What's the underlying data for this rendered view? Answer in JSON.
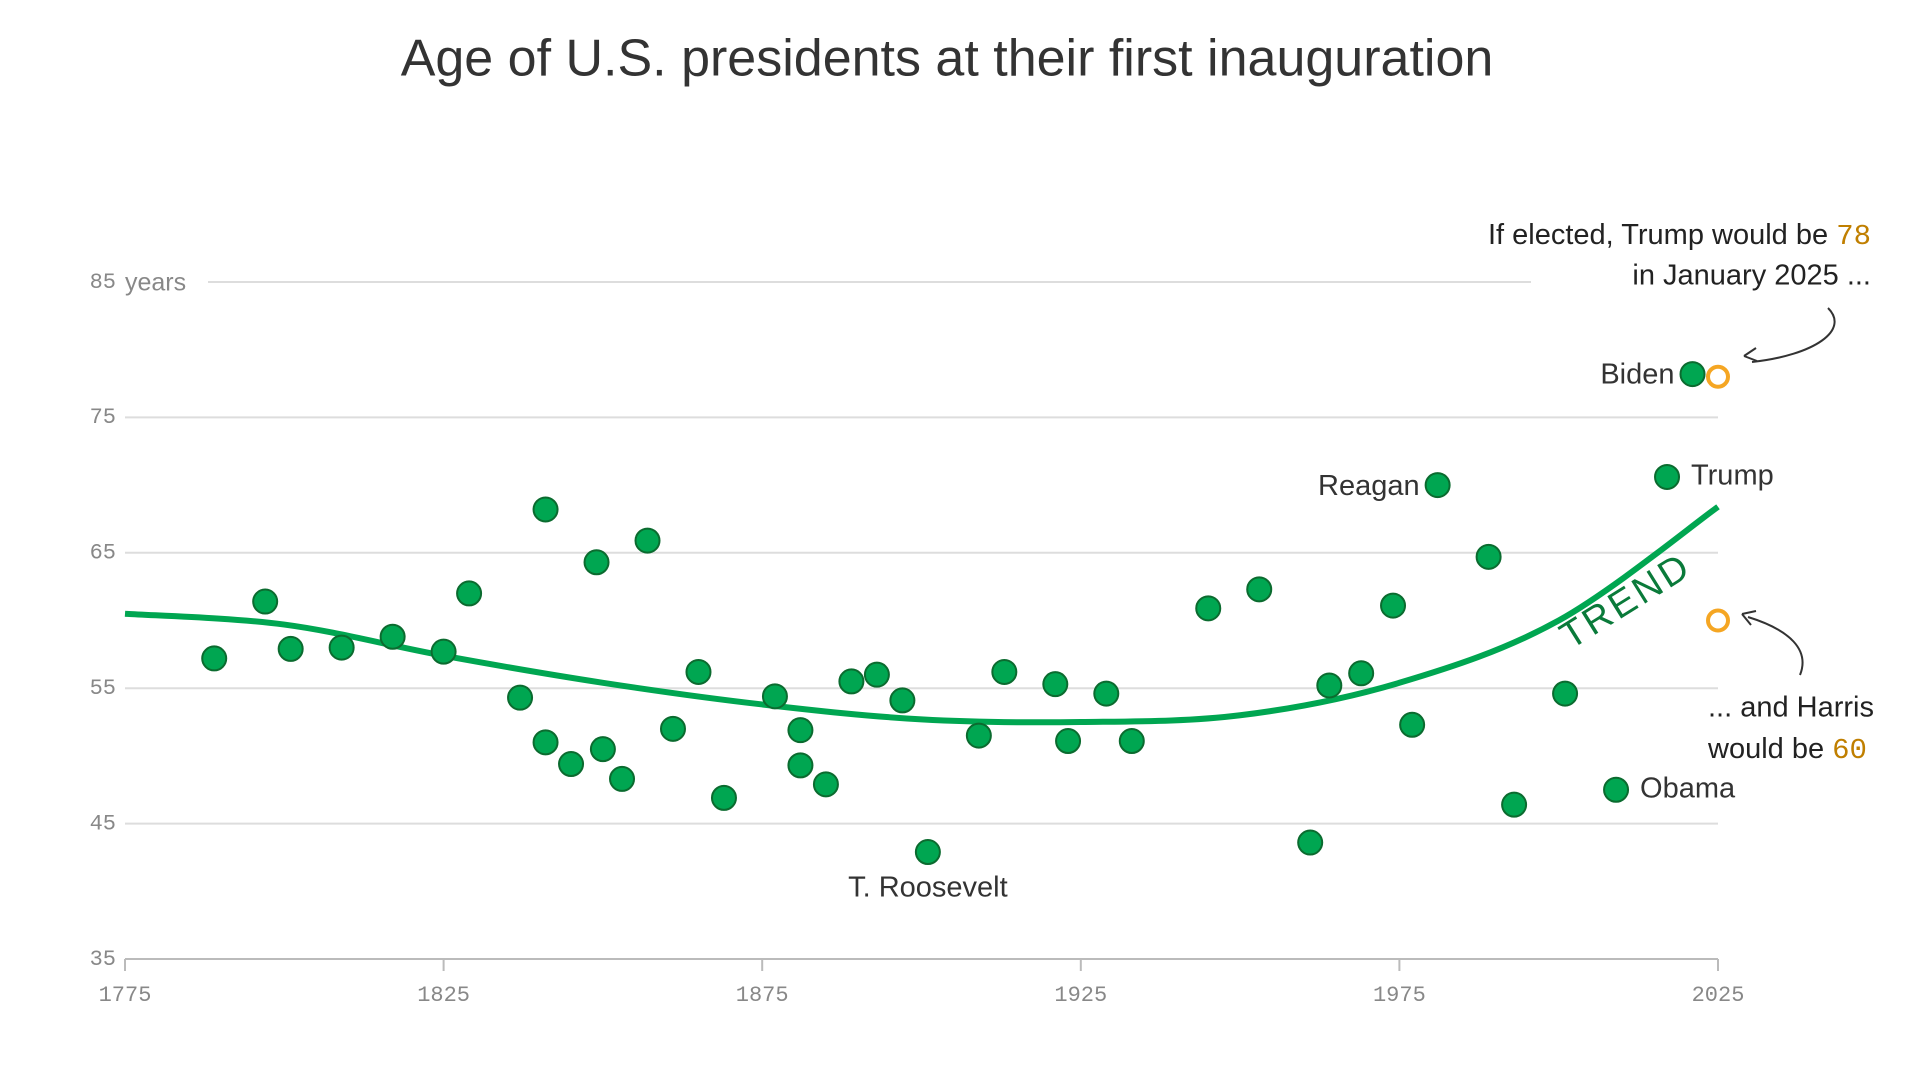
{
  "chart_data": {
    "type": "scatter",
    "title": "Age of U.S. presidents at their first inauguration",
    "y_unit": "years",
    "xlim": [
      1775,
      2025
    ],
    "xticks": [
      1775,
      1825,
      1875,
      1925,
      1975,
      2025
    ],
    "ylim": [
      35,
      85
    ],
    "yticks": [
      35,
      45,
      55,
      65,
      75,
      85
    ],
    "grid": true,
    "color": "#00a651",
    "x": [
      1789,
      1797,
      1801,
      1809,
      1817,
      1825,
      1829,
      1837,
      1841,
      1841,
      1845,
      1849,
      1850,
      1853,
      1857,
      1861,
      1865,
      1869,
      1877,
      1881,
      1881,
      1885,
      1889,
      1893,
      1897,
      1901,
      1909,
      1913,
      1921,
      1923,
      1929,
      1933,
      1945,
      1953,
      1961,
      1964,
      1969,
      1974,
      1977,
      1981,
      1989,
      1993,
      2001,
      2009,
      2017,
      2021
    ],
    "values": [
      57.2,
      61.4,
      57.9,
      58.0,
      58.8,
      57.7,
      62.0,
      54.3,
      68.2,
      51.0,
      49.4,
      64.3,
      50.5,
      48.3,
      65.9,
      52.0,
      56.2,
      46.9,
      54.4,
      49.3,
      51.9,
      47.9,
      55.5,
      56.0,
      54.1,
      42.9,
      51.5,
      56.2,
      55.3,
      51.1,
      54.6,
      51.1,
      60.9,
      62.3,
      43.6,
      55.2,
      56.1,
      61.1,
      52.3,
      70.0,
      64.7,
      46.4,
      54.6,
      47.5,
      70.6,
      78.2
    ],
    "names": [
      null,
      null,
      null,
      null,
      null,
      null,
      null,
      null,
      null,
      null,
      null,
      null,
      null,
      null,
      null,
      null,
      null,
      null,
      null,
      null,
      null,
      null,
      null,
      null,
      null,
      "T. Roosevelt",
      null,
      null,
      null,
      null,
      null,
      null,
      null,
      null,
      null,
      null,
      null,
      null,
      null,
      "Reagan",
      null,
      null,
      null,
      "Obama",
      "Trump",
      "Biden"
    ],
    "trend": {
      "label": "TREND",
      "color": "#00a651",
      "x": [
        1775,
        1800,
        1825,
        1850,
        1875,
        1900,
        1925,
        1950,
        1975,
        2000,
        2025
      ],
      "values": [
        60.5,
        59.7,
        57.4,
        55.4,
        53.8,
        52.7,
        52.5,
        53.0,
        55.4,
        60.0,
        68.4
      ]
    },
    "hypothetical": {
      "color": "#f5a623",
      "x": [
        2025,
        2025
      ],
      "values": [
        78,
        60
      ]
    },
    "annotation_trump": {
      "line1": "If elected, Trump would be",
      "line2": "in January 2025 ..."
    },
    "annotation_harris": {
      "line1": "... and Harris",
      "line2": "would be"
    }
  }
}
